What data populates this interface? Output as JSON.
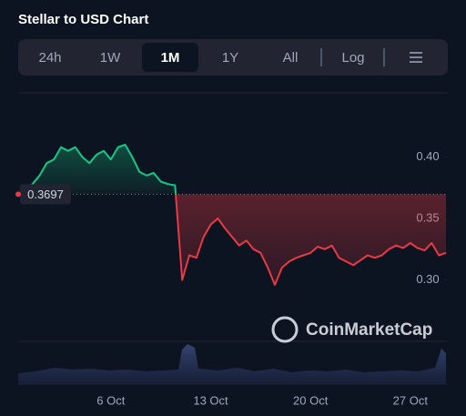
{
  "chart_data": {
    "type": "line",
    "title": "Stellar to USD Chart",
    "tabs": [
      "24h",
      "1W",
      "1M",
      "1Y",
      "All",
      "Log"
    ],
    "active_tab": 2,
    "watermark": "CoinMarketCap",
    "categories": [
      null,
      null,
      null,
      null,
      null,
      null,
      null,
      null,
      null,
      null,
      null,
      null,
      null,
      "6 Oct",
      null,
      null,
      null,
      null,
      null,
      null,
      null,
      null,
      null,
      null,
      null,
      null,
      null,
      "13 Oct",
      null,
      null,
      null,
      null,
      null,
      null,
      null,
      null,
      null,
      null,
      null,
      null,
      null,
      "20 Oct",
      null,
      null,
      null,
      null,
      null,
      null,
      null,
      null,
      null,
      null,
      null,
      null,
      null,
      "27 Oct",
      null,
      null,
      null,
      null,
      null
    ],
    "values": [
      0.37,
      0.373,
      0.378,
      0.385,
      0.395,
      0.398,
      0.408,
      0.405,
      0.408,
      0.4,
      0.395,
      0.402,
      0.405,
      0.398,
      0.408,
      0.41,
      0.4,
      0.388,
      0.385,
      0.387,
      0.38,
      0.378,
      0.377,
      0.3,
      0.32,
      0.318,
      0.335,
      0.345,
      0.35,
      0.342,
      0.335,
      0.328,
      0.332,
      0.325,
      0.322,
      0.31,
      0.296,
      0.31,
      0.315,
      0.318,
      0.32,
      0.322,
      0.327,
      0.325,
      0.328,
      0.318,
      0.315,
      0.312,
      0.316,
      0.32,
      0.318,
      0.32,
      0.325,
      0.328,
      0.326,
      0.33,
      0.326,
      0.324,
      0.33,
      0.32,
      0.322
    ],
    "reference": 0.3697,
    "up_color": "#16c784",
    "down_color": "#ea3943",
    "ylim": [
      0.25,
      0.45
    ],
    "yticks": [
      {
        "value": 0.3,
        "label": "0.30"
      },
      {
        "value": 0.35,
        "label": "0.35"
      },
      {
        "value": 0.4,
        "label": "0.40"
      }
    ]
  }
}
